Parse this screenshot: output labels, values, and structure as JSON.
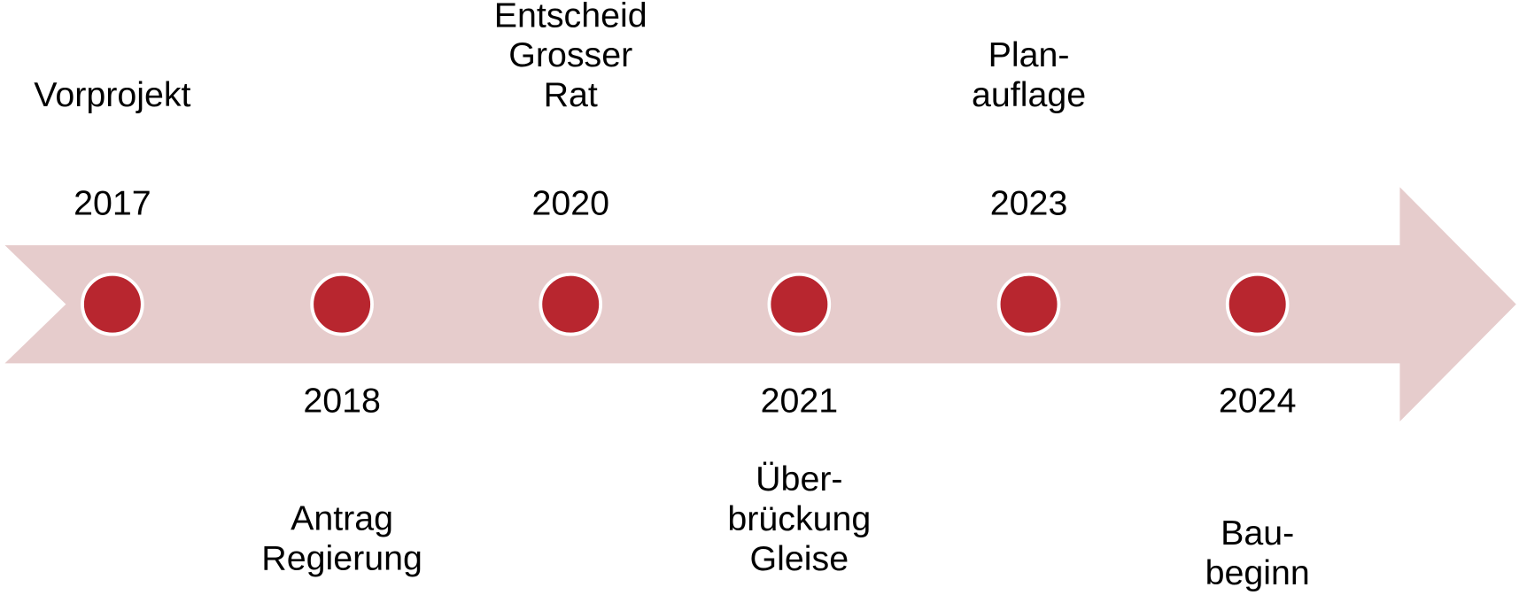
{
  "events": [
    {
      "year": 2017,
      "lines": [
        "Vorprojekt"
      ]
    },
    {
      "year": 2018,
      "lines": [
        "Antrag",
        "Regierung"
      ]
    },
    {
      "year": 2020,
      "lines": [
        "Entscheid",
        "Grosser",
        "Rat"
      ]
    },
    {
      "year": 2021,
      "lines": [
        "Über-",
        "brückung",
        "Gleise"
      ]
    },
    {
      "year": 2023,
      "lines": [
        "Plan-",
        "auflage"
      ]
    },
    {
      "year": 2024,
      "lines": [
        "Bau-",
        "beginn"
      ]
    }
  ]
}
